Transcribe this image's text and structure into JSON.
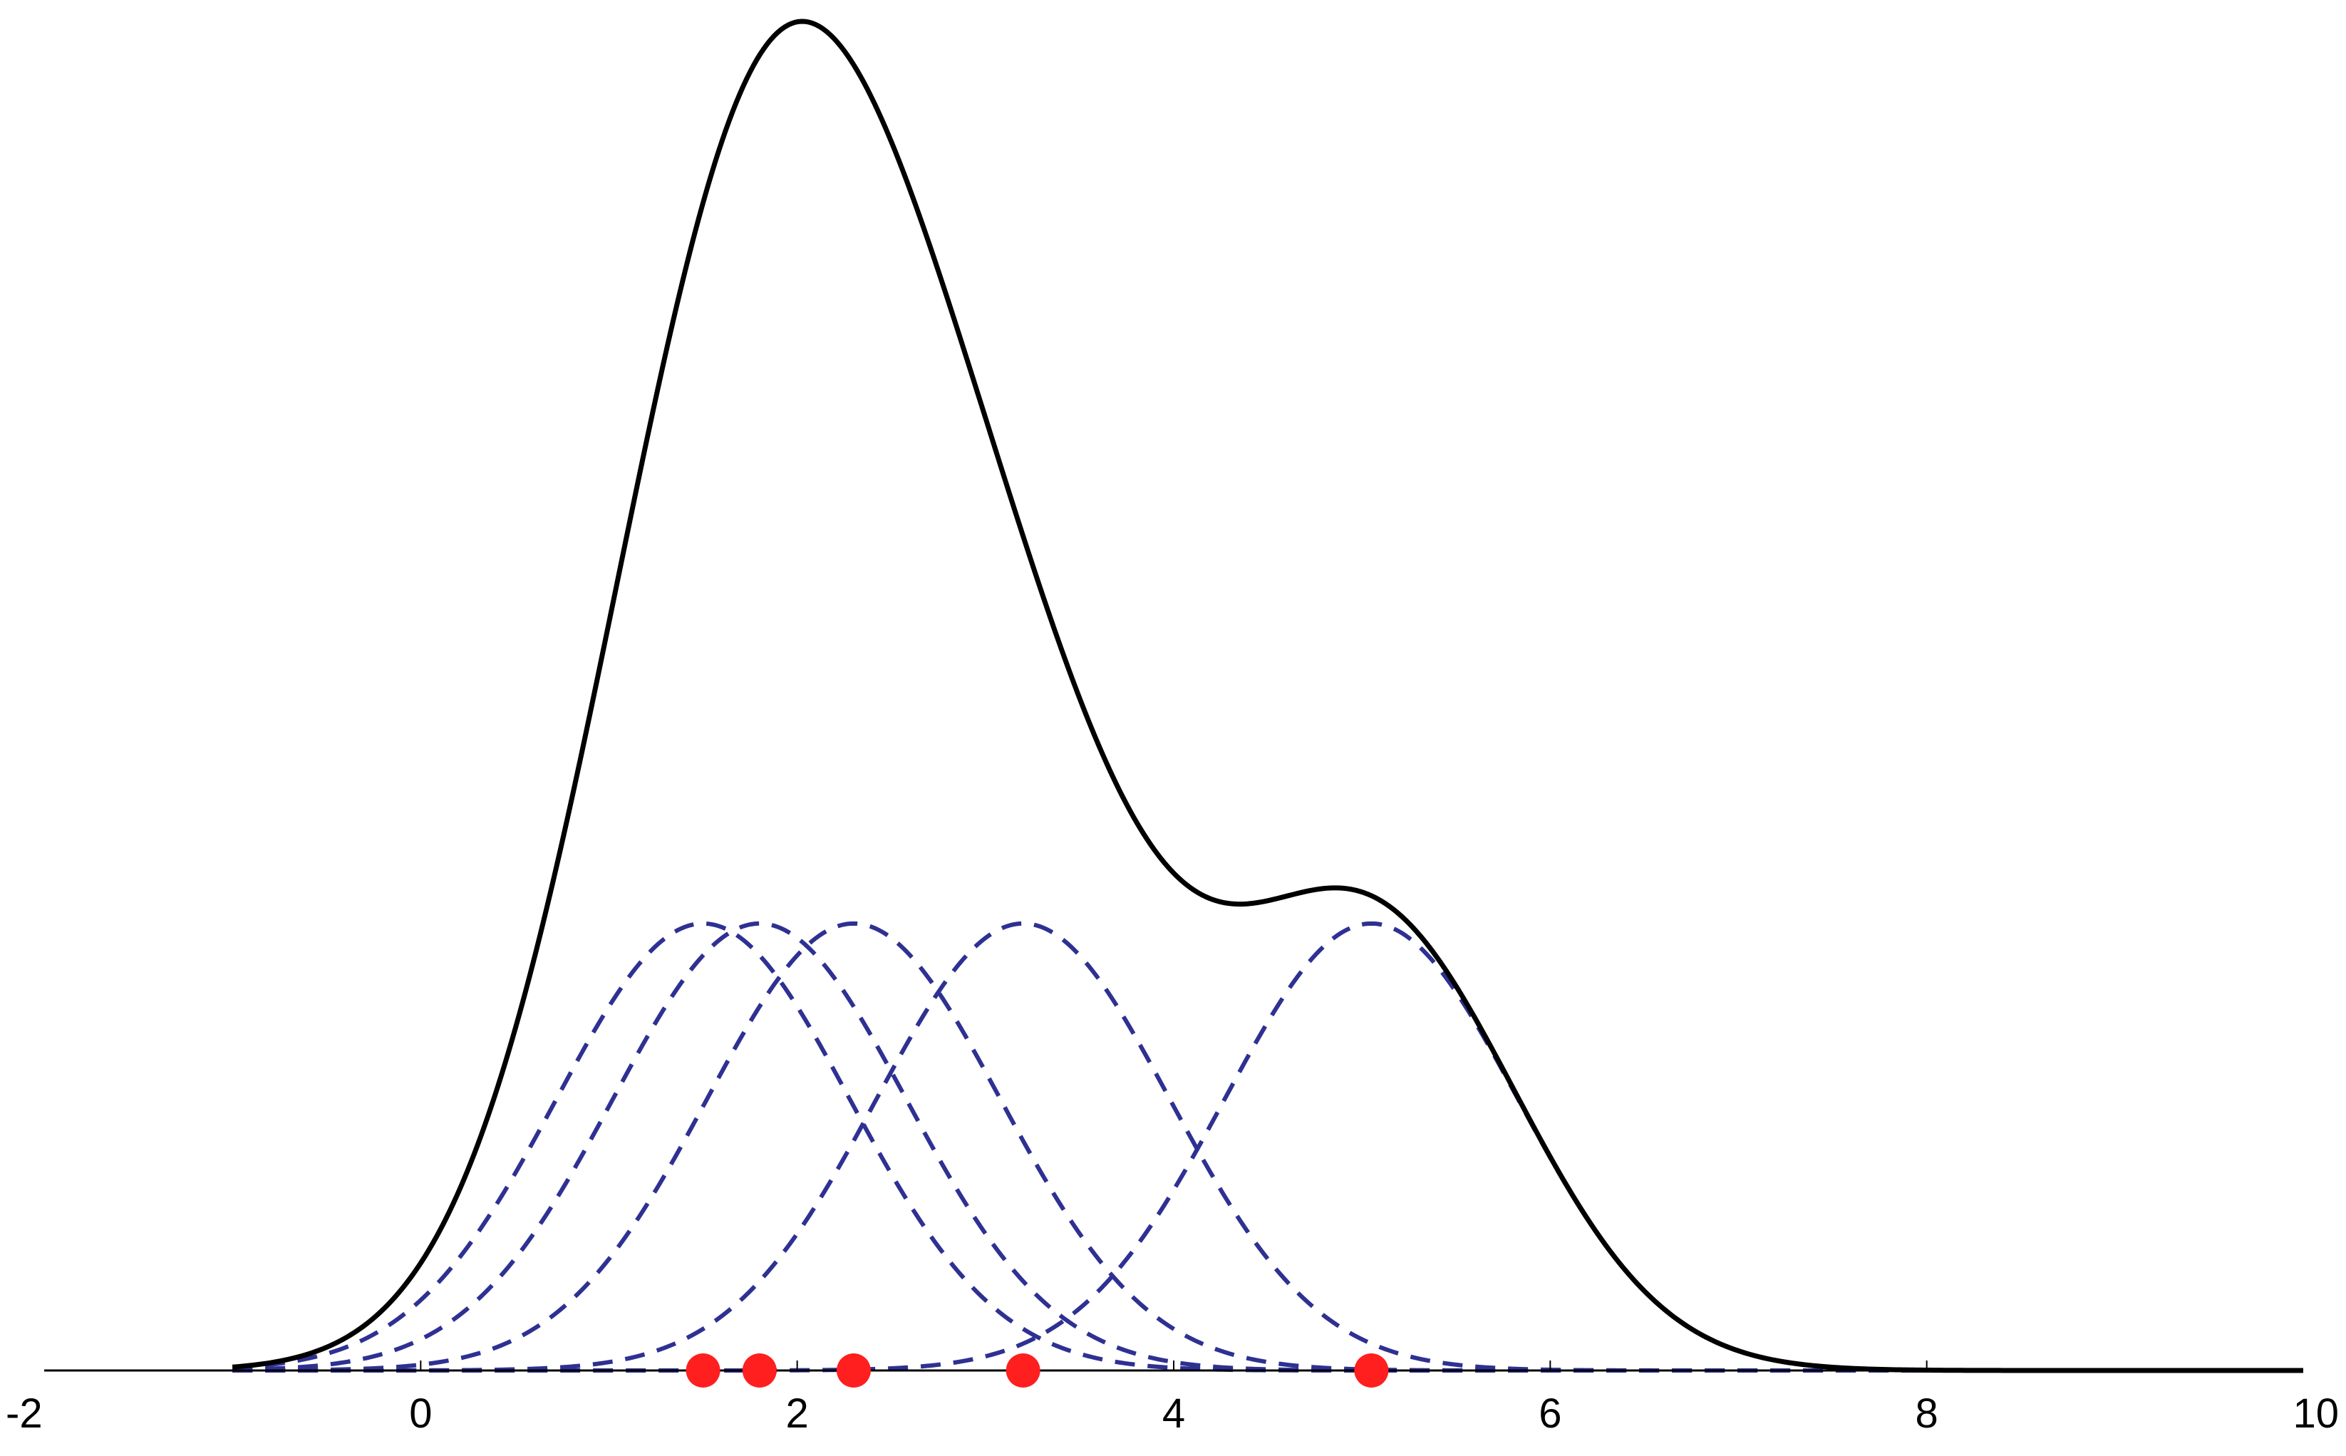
{
  "colors": {
    "background": "#ffffff",
    "axis": "#000000",
    "kde_curve": "#000000",
    "kernel_curves": "#2e3192",
    "data_points": "#ff1f1f"
  },
  "chart_data": {
    "type": "line",
    "title": "",
    "xlabel": "",
    "ylabel": "",
    "xlim": [
      -2,
      10
    ],
    "ylim": [
      0,
      1
    ],
    "grid": false,
    "legend": "none",
    "y_axis_visible": false,
    "x_ticks": [
      -2,
      0,
      2,
      4,
      6,
      8,
      10
    ],
    "x_tick_labels": [
      "-2",
      "0",
      "2",
      "4",
      "6",
      "8",
      "10"
    ],
    "data_points": [
      1.5,
      1.8,
      2.3,
      3.2,
      5.05
    ],
    "kernel": "gaussian",
    "bandwidth": 0.78,
    "curve_x_range": [
      -1,
      10
    ],
    "series": [
      {
        "style": "solid",
        "role": "density_estimate_sum_of_kernels"
      },
      {
        "style": "dashed",
        "role": "kernel",
        "center": 1.5
      },
      {
        "style": "dashed",
        "role": "kernel",
        "center": 1.8
      },
      {
        "style": "dashed",
        "role": "kernel",
        "center": 2.3
      },
      {
        "style": "dashed",
        "role": "kernel",
        "center": 3.2
      },
      {
        "style": "dashed",
        "role": "kernel",
        "center": 5.05
      }
    ]
  }
}
